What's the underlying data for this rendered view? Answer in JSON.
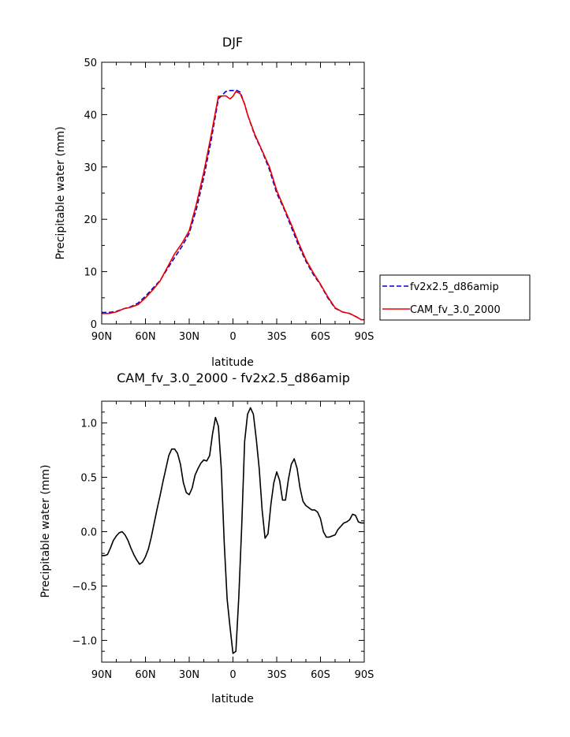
{
  "chart_data": [
    {
      "type": "line",
      "title": "DJF",
      "xlabel": "latitude",
      "ylabel": "Precipitable water (mm)",
      "xlim": [
        90,
        -90
      ],
      "ylim": [
        0,
        50
      ],
      "xticks": [
        90,
        60,
        30,
        0,
        -30,
        -60,
        -90
      ],
      "xtick_labels": [
        "90N",
        "60N",
        "30N",
        "0",
        "30S",
        "60S",
        "90S"
      ],
      "yticks": [
        0,
        10,
        20,
        30,
        40,
        50
      ],
      "ytick_labels": [
        "0",
        "10",
        "20",
        "30",
        "40",
        "50"
      ],
      "grid": false,
      "legend_position": "right",
      "series": [
        {
          "name": "fv2x2.5_d86amip",
          "color": "#0000cc",
          "dash": "dashed",
          "x": [
            90,
            85,
            80,
            75,
            70,
            65,
            60,
            55,
            50,
            45,
            40,
            35,
            30,
            25,
            20,
            15,
            10,
            5,
            2,
            0,
            -2,
            -5,
            -8,
            -10,
            -15,
            -20,
            -25,
            -30,
            -35,
            -40,
            -45,
            -50,
            -55,
            -60,
            -65,
            -70,
            -75,
            -80,
            -85,
            -88,
            -90
          ],
          "y": [
            2.2,
            2.2,
            2.4,
            2.9,
            3.3,
            4,
            5.3,
            6.8,
            8.3,
            10.5,
            12.7,
            14.8,
            17.3,
            22,
            28,
            35,
            43,
            44.4,
            44.6,
            44.6,
            44.7,
            44.3,
            42,
            40,
            36,
            33,
            29.5,
            25,
            22,
            18.5,
            15,
            12,
            9.5,
            7.5,
            5,
            3,
            2.3,
            2,
            1.3,
            0.8,
            0.8
          ]
        },
        {
          "name": "CAM_fv_3.0_2000",
          "color": "#ee0000",
          "dash": "solid",
          "x": [
            90,
            85,
            80,
            75,
            70,
            65,
            60,
            55,
            50,
            45,
            40,
            35,
            30,
            25,
            20,
            15,
            10,
            5,
            2,
            0,
            -2,
            -5,
            -8,
            -10,
            -15,
            -20,
            -25,
            -30,
            -35,
            -40,
            -45,
            -50,
            -55,
            -60,
            -65,
            -70,
            -75,
            -80,
            -85,
            -88,
            -90
          ],
          "y": [
            2,
            2,
            2.3,
            2.9,
            3.2,
            3.7,
            5,
            6.5,
            8.2,
            10.8,
            13.4,
            15.4,
            17.8,
            23,
            29,
            36,
            43.5,
            43.6,
            43,
            43.5,
            44.4,
            44,
            42,
            40,
            36.2,
            33.1,
            30,
            25.5,
            22.2,
            19,
            15.5,
            12.3,
            9.8,
            7.6,
            5.2,
            3.1,
            2.3,
            2,
            1.3,
            0.8,
            0.8
          ]
        }
      ]
    },
    {
      "type": "line",
      "title": "CAM_fv_3.0_2000 - fv2x2.5_d86amip",
      "xlabel": "latitude",
      "ylabel": "Precipitable water (mm)",
      "xlim": [
        90,
        -90
      ],
      "ylim": [
        -1.2,
        1.2
      ],
      "xticks": [
        90,
        60,
        30,
        0,
        -30,
        -60,
        -90
      ],
      "xtick_labels": [
        "90N",
        "60N",
        "30N",
        "0",
        "30S",
        "60S",
        "90S"
      ],
      "yticks": [
        1.0,
        0.5,
        0.0,
        -0.5,
        -1.0
      ],
      "ytick_labels": [
        "1.0",
        "0.5",
        "0.0",
        "−0.5",
        "−1.0"
      ],
      "grid": false,
      "series": [
        {
          "color": "#000000",
          "dash": "solid",
          "x": [
            90,
            88,
            86,
            84,
            82,
            80,
            78,
            76,
            74,
            72,
            70,
            68,
            66,
            64,
            62,
            60,
            58,
            56,
            54,
            52,
            50,
            48,
            46,
            44,
            42,
            40,
            38,
            36,
            34,
            32,
            30,
            28,
            26,
            24,
            22,
            20,
            18,
            16,
            14,
            12,
            10,
            8,
            6,
            4,
            2,
            0,
            -2,
            -4,
            -6,
            -8,
            -10,
            -12,
            -14,
            -16,
            -18,
            -20,
            -22,
            -24,
            -26,
            -28,
            -30,
            -32,
            -34,
            -36,
            -38,
            -40,
            -42,
            -44,
            -46,
            -48,
            -50,
            -52,
            -54,
            -56,
            -58,
            -60,
            -62,
            -64,
            -66,
            -68,
            -70,
            -72,
            -74,
            -76,
            -78,
            -80,
            -82,
            -84,
            -86,
            -88,
            -90
          ],
          "y": [
            -0.22,
            -0.22,
            -0.21,
            -0.15,
            -0.08,
            -0.04,
            -0.01,
            0.0,
            -0.03,
            -0.08,
            -0.15,
            -0.21,
            -0.26,
            -0.3,
            -0.28,
            -0.23,
            -0.16,
            -0.05,
            0.08,
            0.21,
            0.33,
            0.46,
            0.58,
            0.7,
            0.76,
            0.76,
            0.72,
            0.62,
            0.45,
            0.36,
            0.34,
            0.4,
            0.52,
            0.58,
            0.63,
            0.66,
            0.65,
            0.7,
            0.9,
            1.05,
            0.97,
            0.58,
            -0.1,
            -0.62,
            -0.88,
            -1.12,
            -1.1,
            -0.6,
            0.05,
            0.83,
            1.08,
            1.14,
            1.08,
            0.85,
            0.58,
            0.2,
            -0.06,
            -0.02,
            0.25,
            0.45,
            0.55,
            0.47,
            0.29,
            0.29,
            0.48,
            0.62,
            0.67,
            0.58,
            0.4,
            0.28,
            0.24,
            0.22,
            0.2,
            0.2,
            0.18,
            0.12,
            0.0,
            -0.05,
            -0.05,
            -0.04,
            -0.03,
            0.02,
            0.05,
            0.08,
            0.09,
            0.11,
            0.16,
            0.15,
            0.09,
            0.08,
            0.08
          ]
        }
      ]
    }
  ]
}
